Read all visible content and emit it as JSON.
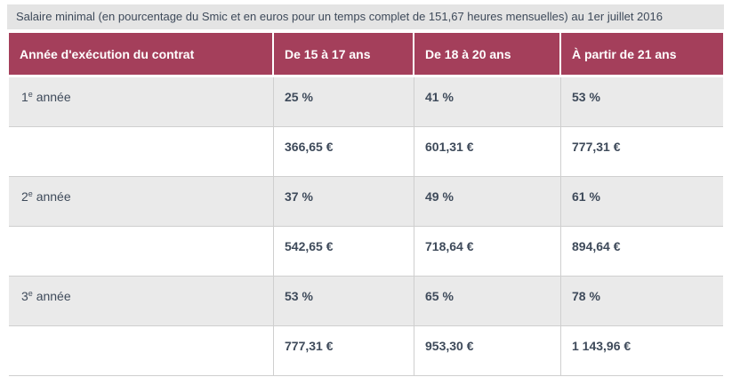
{
  "page": {
    "caption": "Salaire minimal (en pourcentage du Smic et en euros pour un temps complet de 151,67 heures mensuelles) au 1er juillet 2016"
  },
  "colors": {
    "header_bg": "#a43f5b",
    "row_alt_bg": "#eaeaea",
    "caption_bg": "#e4e4e4",
    "text": "#3e4a5a",
    "border": "#cfcfcf",
    "header_text": "#ffffff"
  },
  "table": {
    "headers": [
      "Année d'exécution du contrat",
      "De 15 à 17 ans",
      "De 18 à 20 ans",
      "À partir de 21 ans"
    ],
    "rows": [
      {
        "year_num": "1",
        "year_sup": "e",
        "year_rest": " année",
        "cells": [
          "25 %",
          "41 %",
          "53 %"
        ]
      },
      {
        "cells": [
          "366,65 €",
          "601,31 €",
          "777,31 €"
        ]
      },
      {
        "year_num": "2",
        "year_sup": "e",
        "year_rest": " année",
        "cells": [
          "37 %",
          "49 %",
          "61 %"
        ]
      },
      {
        "cells": [
          "542,65 €",
          "718,64 €",
          "894,64 €"
        ]
      },
      {
        "year_num": "3",
        "year_sup": "e",
        "year_rest": " année",
        "cells": [
          "53 %",
          "65 %",
          "78 %"
        ]
      },
      {
        "cells": [
          "777,31 €",
          "953,30 €",
          "1 143,96 €"
        ]
      }
    ]
  }
}
